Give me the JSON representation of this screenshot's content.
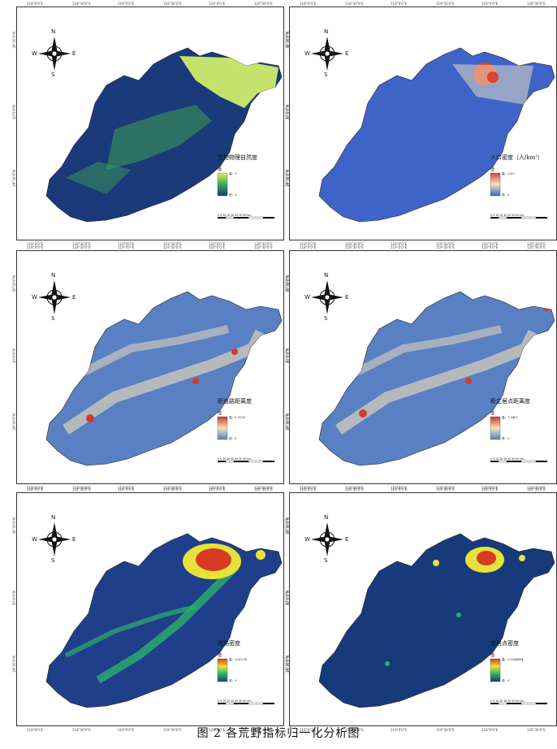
{
  "figure_caption": "图 2      各荒野指标归一化分析图",
  "compass": {
    "n": "N",
    "s": "S",
    "w": "W",
    "e": "E"
  },
  "coords": {
    "top": [
      "118°0'0\"E",
      "118°30'0\"E",
      "119°0'0\"E",
      "119°30'0\"E",
      "120°0'0\"E",
      "120°30'0\"E"
    ],
    "left": [
      "30°30'0\"N",
      "30°0'0\"N",
      "29°30'0\"N"
    ]
  },
  "legend": {
    "value_title": "值",
    "high_prefix": "高",
    "low_label": "低：0"
  },
  "scale_labels": "0 5 10    20    30    40    50    60 km",
  "panels": [
    {
      "title": "生物物理自然度",
      "high": "高：1",
      "low": "低：0",
      "colors": [
        "#1a3a7a",
        "#3fa84f",
        "#d8f56a"
      ]
    },
    {
      "title": "人口密度（人/km²）",
      "high": "高：2517",
      "low": "低：0",
      "colors": [
        "#3e64c8",
        "#f1e3c4",
        "#d6462f"
      ]
    },
    {
      "title": "距道路距离度",
      "high": "高：0.3138",
      "low": "低：0",
      "colors": [
        "#5a80c4",
        "#f3e0b8",
        "#d13b2b"
      ]
    },
    {
      "title": "距定居点距离度",
      "high": "高：1.0467",
      "low": "低：0",
      "colors": [
        "#5a80c4",
        "#f3e0b8",
        "#d13b2b"
      ]
    },
    {
      "title": "道路密度",
      "high": "高：2021.96",
      "low": "低：0",
      "colors": [
        "#1f3f8a",
        "#2cb06a",
        "#e7e23a",
        "#d83a24"
      ]
    },
    {
      "title": "定居点密度",
      "high": "高：2.5264894",
      "low": "低：0",
      "colors": [
        "#173a7a",
        "#2cb06a",
        "#e7e23a",
        "#d83a24"
      ]
    }
  ]
}
